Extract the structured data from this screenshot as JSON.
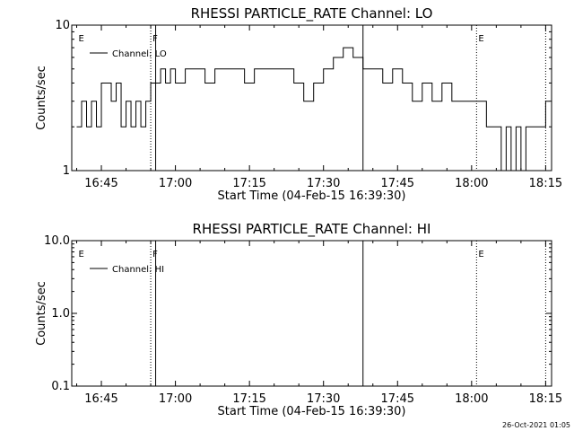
{
  "footer": {
    "timestamp": "26-Oct-2021 01:05"
  },
  "chart_data": [
    {
      "type": "line",
      "title": "RHESSI PARTICLE_RATE Channel: LO",
      "xlabel": "Start Time (04-Feb-15 16:39:30)",
      "ylabel": "Counts/sec",
      "yscale": "log",
      "ylim": [
        1,
        10
      ],
      "yticks": [
        "1",
        "10"
      ],
      "xlim_minutes": [
        16.65,
        18.27
      ],
      "xticks": [
        "16:45",
        "17:00",
        "17:15",
        "17:30",
        "17:45",
        "18:00",
        "18:15"
      ],
      "legend": {
        "position": "top-left",
        "entry": "Channel: LO"
      },
      "markers": [
        {
          "label": "E",
          "time": "16:40",
          "style": "none"
        },
        {
          "label": "F",
          "time": "16:55",
          "style": "dotted"
        },
        {
          "label": "",
          "time": "16:56",
          "style": "solid"
        },
        {
          "label": "",
          "time": "17:38",
          "style": "solid"
        },
        {
          "label": "E",
          "time": "18:01",
          "style": "dotted"
        },
        {
          "label": "",
          "time": "18:15",
          "style": "dotted"
        }
      ],
      "series": [
        {
          "name": "Channel: LO",
          "x": [
            "16:40",
            "16:41",
            "16:42",
            "16:43",
            "16:44",
            "16:45",
            "16:46",
            "16:47",
            "16:48",
            "16:49",
            "16:50",
            "16:51",
            "16:52",
            "16:53",
            "16:54",
            "16:55",
            "16:56",
            "16:57",
            "16:58",
            "16:59",
            "17:00",
            "17:02",
            "17:04",
            "17:06",
            "17:08",
            "17:10",
            "17:12",
            "17:14",
            "17:16",
            "17:18",
            "17:20",
            "17:22",
            "17:24",
            "17:26",
            "17:28",
            "17:30",
            "17:32",
            "17:34",
            "17:36",
            "17:38",
            "17:40",
            "17:42",
            "17:44",
            "17:46",
            "17:48",
            "17:50",
            "17:52",
            "17:54",
            "17:56",
            "17:58",
            "18:00",
            "18:02",
            "18:03",
            "18:04",
            "18:05",
            "18:06",
            "18:07",
            "18:08",
            "18:09",
            "18:10",
            "18:11",
            "18:12",
            "18:13",
            "18:14",
            "18:15"
          ],
          "y": [
            2,
            3,
            2,
            3,
            2,
            4,
            4,
            3,
            4,
            2,
            3,
            2,
            3,
            2,
            3,
            4,
            4,
            5,
            4,
            5,
            4,
            5,
            5,
            4,
            5,
            5,
            5,
            4,
            5,
            5,
            5,
            5,
            4,
            3,
            4,
            5,
            6,
            7,
            6,
            5,
            5,
            4,
            5,
            4,
            3,
            4,
            3,
            4,
            3,
            3,
            3,
            3,
            2,
            2,
            2,
            1,
            2,
            1,
            2,
            1,
            2,
            2,
            2,
            2,
            3
          ]
        }
      ]
    },
    {
      "type": "line",
      "title": "RHESSI PARTICLE_RATE Channel: HI",
      "xlabel": "Start Time (04-Feb-15 16:39:30)",
      "ylabel": "Counts/sec",
      "yscale": "log",
      "ylim": [
        0.1,
        10.0
      ],
      "yticks": [
        "0.1",
        "1.0",
        "10.0"
      ],
      "xlim_minutes": [
        16.65,
        18.27
      ],
      "xticks": [
        "16:45",
        "17:00",
        "17:15",
        "17:30",
        "17:45",
        "18:00",
        "18:15"
      ],
      "legend": {
        "position": "top-left",
        "entry": "Channel: HI"
      },
      "markers": [
        {
          "label": "E",
          "time": "16:40",
          "style": "none"
        },
        {
          "label": "F",
          "time": "16:55",
          "style": "dotted"
        },
        {
          "label": "",
          "time": "16:56",
          "style": "solid"
        },
        {
          "label": "",
          "time": "17:38",
          "style": "solid"
        },
        {
          "label": "E",
          "time": "18:01",
          "style": "dotted"
        },
        {
          "label": "",
          "time": "18:15",
          "style": "dotted"
        }
      ],
      "series": [
        {
          "name": "Channel: HI",
          "x": [],
          "y": []
        }
      ]
    }
  ]
}
